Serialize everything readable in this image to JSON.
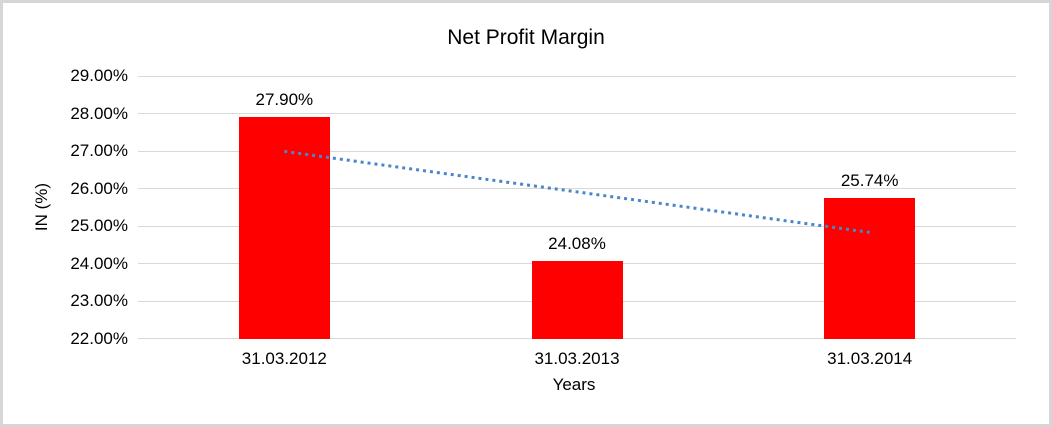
{
  "window": {
    "background": "#FFFFFF",
    "frame_border_color": "#D6D6D6"
  },
  "chart_data": {
    "type": "bar",
    "title": "Net Profit Margin",
    "categories": [
      "31.03.2012",
      "31.03.2013",
      "31.03.2014"
    ],
    "values": [
      27.9,
      24.08,
      25.74
    ],
    "data_labels": [
      "27.90%",
      "24.08%",
      "25.74%"
    ],
    "xlabel": "Years",
    "ylabel": "IN (%)",
    "ylim": [
      22,
      29
    ],
    "ytick_step": 1,
    "ytick_labels": [
      "22.00%",
      "23.00%",
      "24.00%",
      "25.00%",
      "26.00%",
      "27.00%",
      "28.00%",
      "29.00%"
    ],
    "grid": true,
    "gridline_color": "#D9D9D9",
    "legend": "none",
    "bar_color": "#FF0000",
    "text_color": "#000000",
    "trendline": {
      "type": "linear",
      "style": "dotted",
      "color": "#4A86C8",
      "start_value": 26.99,
      "end_value": 24.83
    }
  }
}
